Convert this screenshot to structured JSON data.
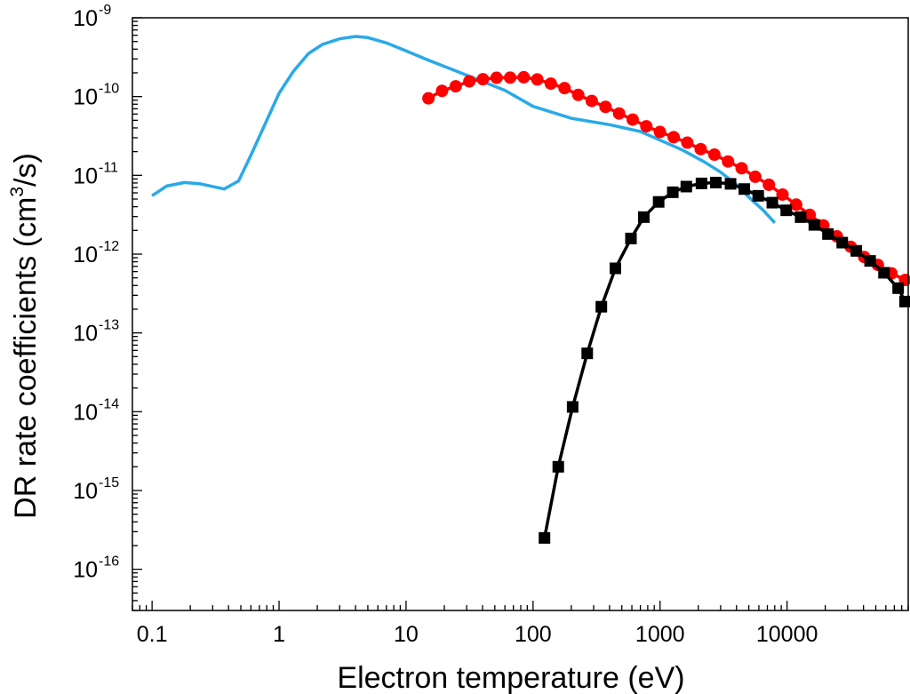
{
  "chart_data": {
    "type": "line",
    "title": "",
    "xlabel": "Electron temperature (eV)",
    "ylabel_parts": {
      "prefix": "DR rate coefficients (cm",
      "sup": "3",
      "suffix": "/s)"
    },
    "xscale": "log",
    "yscale": "log",
    "xlim": [
      0.07,
      90000
    ],
    "ylim": [
      3e-17,
      1e-09
    ],
    "x_ticks": [
      {
        "value": 0.1,
        "label": "0.1"
      },
      {
        "value": 1,
        "label": "1"
      },
      {
        "value": 10,
        "label": "10"
      },
      {
        "value": 100,
        "label": "100"
      },
      {
        "value": 1000,
        "label": "1000"
      },
      {
        "value": 10000,
        "label": "10000"
      }
    ],
    "y_ticks": [
      {
        "value": 1e-16,
        "base": "10",
        "exp": "-16"
      },
      {
        "value": 1e-15,
        "base": "10",
        "exp": "-15"
      },
      {
        "value": 1e-14,
        "base": "10",
        "exp": "-14"
      },
      {
        "value": 1e-13,
        "base": "10",
        "exp": "-13"
      },
      {
        "value": 1e-12,
        "base": "10",
        "exp": "-12"
      },
      {
        "value": 1e-11,
        "base": "10",
        "exp": "-11"
      },
      {
        "value": 1e-10,
        "base": "10",
        "exp": "-10"
      },
      {
        "value": 1e-09,
        "base": "10",
        "exp": "-9"
      }
    ],
    "grid": false,
    "legend": "none",
    "series": [
      {
        "name": "light-blue-curve",
        "color": "#29aae8",
        "marker": "none",
        "x": [
          0.1,
          0.13,
          0.18,
          0.24,
          0.37,
          0.48,
          0.6,
          0.8,
          1.0,
          1.3,
          1.7,
          2.2,
          3.0,
          4.0,
          5.0,
          7.0,
          10,
          15,
          25,
          40,
          60,
          100,
          200,
          400,
          700,
          1000,
          1500,
          2200,
          3000,
          4000,
          5000,
          6500,
          8000
        ],
        "y": [
          5.5e-12,
          7.3e-12,
          8.1e-12,
          7.8e-12,
          6.7e-12,
          8.5e-12,
          1.8e-11,
          5e-11,
          1.1e-10,
          2.1e-10,
          3.5e-10,
          4.6e-10,
          5.4e-10,
          5.8e-10,
          5.6e-10,
          4.8e-10,
          3.8e-10,
          2.9e-10,
          2.1e-10,
          1.55e-10,
          1.2e-10,
          7.5e-11,
          5.3e-11,
          4.4e-11,
          3.6e-11,
          2.8e-11,
          2.1e-11,
          1.5e-11,
          1.1e-11,
          7.6e-12,
          5.3e-12,
          3.6e-12,
          2.5e-12
        ]
      },
      {
        "name": "red-circles",
        "color": "#ff0000",
        "marker": "circle",
        "x": [
          15,
          19.2,
          24.6,
          31.5,
          40.3,
          51.6,
          66,
          84.5,
          108,
          138,
          177,
          227,
          290,
          372,
          476,
          609,
          780,
          998,
          1280,
          1640,
          2090,
          2680,
          3430,
          4390,
          5620,
          7200,
          9210,
          11800,
          15100,
          19300,
          24700,
          31700,
          40500,
          51900,
          66400,
          85000
        ],
        "y": [
          9.5e-11,
          1.18e-10,
          1.35e-10,
          1.56e-10,
          1.66e-10,
          1.73e-10,
          1.74e-10,
          1.76e-10,
          1.65e-10,
          1.46e-10,
          1.28e-10,
          1.05e-10,
          8.8e-11,
          7.4e-11,
          6.1e-11,
          5.1e-11,
          4.2e-11,
          3.55e-11,
          3.05e-11,
          2.6e-11,
          2.15e-11,
          1.83e-11,
          1.5e-11,
          1.23e-11,
          9.6e-12,
          7.6e-12,
          5.7e-12,
          4.25e-12,
          3.15e-12,
          2.32e-12,
          1.68e-12,
          1.24e-12,
          9.2e-13,
          7.3e-13,
          5.7e-13,
          4.7e-13
        ]
      },
      {
        "name": "black-squares",
        "color": "#000000",
        "marker": "square",
        "x": [
          123,
          158,
          205,
          267,
          345,
          445,
          590,
          745,
          975,
          1260,
          1610,
          2120,
          2750,
          3590,
          4610,
          5930,
          7660,
          9860,
          12800,
          16400,
          21000,
          27200,
          35100,
          45100,
          58000,
          75000,
          85000
        ],
        "y": [
          2.5e-16,
          2e-15,
          1.15e-14,
          5.5e-14,
          2.15e-13,
          6.6e-13,
          1.58e-12,
          2.95e-12,
          4.6e-12,
          6.1e-12,
          7.2e-12,
          7.9e-12,
          8.1e-12,
          7.8e-12,
          6.7e-12,
          5.5e-12,
          4.5e-12,
          3.6e-12,
          2.95e-12,
          2.35e-12,
          1.8e-12,
          1.4e-12,
          1.1e-12,
          8.2e-13,
          5.8e-13,
          3.7e-13,
          2.5e-13
        ]
      }
    ]
  }
}
